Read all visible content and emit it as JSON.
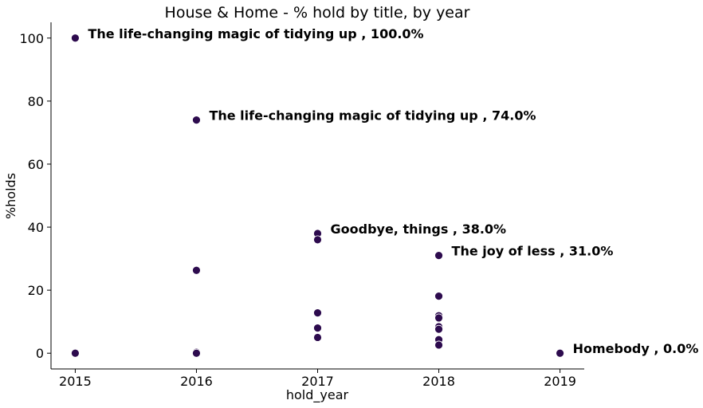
{
  "chart_data": {
    "type": "scatter",
    "title": "House & Home - % hold by title, by year",
    "xlabel": "hold_year",
    "ylabel": "%holds",
    "xlim": [
      2014.8,
      2019.2
    ],
    "ylim": [
      -5,
      105
    ],
    "xticks": [
      2015,
      2016,
      2017,
      2018,
      2019
    ],
    "xtick_labels": [
      "2015",
      "2016",
      "2017",
      "2018",
      "2019"
    ],
    "yticks": [
      0,
      20,
      40,
      60,
      80,
      100
    ],
    "ytick_labels": [
      "0",
      "20",
      "40",
      "60",
      "80",
      "100"
    ],
    "grid": false,
    "marker_color": "#2d0b4e",
    "points": [
      {
        "x": 2015,
        "y": 100.0
      },
      {
        "x": 2015,
        "y": 0.0
      },
      {
        "x": 2016,
        "y": 74.0
      },
      {
        "x": 2016,
        "y": 26.3
      },
      {
        "x": 2016,
        "y": 0.3
      },
      {
        "x": 2016,
        "y": 0.0
      },
      {
        "x": 2017,
        "y": 38.0
      },
      {
        "x": 2017,
        "y": 36.0
      },
      {
        "x": 2017,
        "y": 12.8
      },
      {
        "x": 2017,
        "y": 8.0
      },
      {
        "x": 2017,
        "y": 5.0
      },
      {
        "x": 2018,
        "y": 31.0
      },
      {
        "x": 2018,
        "y": 18.1
      },
      {
        "x": 2018,
        "y": 11.9
      },
      {
        "x": 2018,
        "y": 11.2
      },
      {
        "x": 2018,
        "y": 8.4
      },
      {
        "x": 2018,
        "y": 7.6
      },
      {
        "x": 2018,
        "y": 4.3
      },
      {
        "x": 2018,
        "y": 2.6
      },
      {
        "x": 2019,
        "y": 0.0
      }
    ],
    "annotations": [
      {
        "x": 2015,
        "y": 100.0,
        "text": "The life-changing magic of tidying up , 100.0%"
      },
      {
        "x": 2016,
        "y": 74.0,
        "text": "The life-changing magic of tidying up , 74.0%"
      },
      {
        "x": 2017,
        "y": 38.0,
        "text": "Goodbye, things , 38.0%"
      },
      {
        "x": 2018,
        "y": 31.0,
        "text": "The joy of less , 31.0%"
      },
      {
        "x": 2019,
        "y": 0.0,
        "text": "Homebody , 0.0%"
      }
    ]
  }
}
